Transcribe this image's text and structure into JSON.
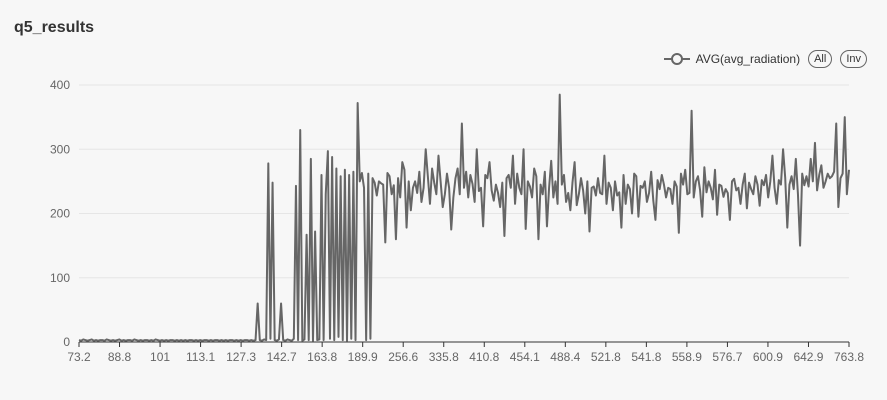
{
  "title": "q5_results",
  "legend": {
    "series_label": "AVG(avg_radiation)",
    "all_label": "All",
    "inv_label": "Inv"
  },
  "colors": {
    "series": "#666666",
    "grid": "#e6e6e6",
    "axis": "#333333"
  },
  "chart_data": {
    "type": "line",
    "title": "q5_results",
    "xlabel": "",
    "ylabel": "",
    "xlim": [
      73.2,
      763.8
    ],
    "ylim": [
      0,
      400
    ],
    "x_tick_labels": [
      "73.2",
      "88.8",
      "101",
      "113.1",
      "127.3",
      "142.7",
      "163.8",
      "189.9",
      "256.6",
      "335.8",
      "410.8",
      "454.1",
      "488.4",
      "521.8",
      "541.8",
      "558.9",
      "576.7",
      "600.9",
      "642.9",
      "763.8"
    ],
    "y_ticks": [
      0,
      100,
      200,
      300,
      400
    ],
    "grid": "horizontal",
    "legend_position": "top-right",
    "series": [
      {
        "name": "AVG(avg_radiation)",
        "sampling": "approximately evenly spaced points across the x-axis categories; values estimated from the image",
        "values": [
          3,
          2,
          4,
          3,
          2,
          3,
          4,
          2,
          3,
          2,
          3,
          3,
          2,
          4,
          3,
          2,
          3,
          2,
          3,
          4,
          2,
          3,
          2,
          3,
          3,
          2,
          4,
          3,
          2,
          3,
          2,
          3,
          3,
          2,
          3,
          2,
          4,
          3,
          2,
          3,
          2,
          3,
          2,
          3,
          3,
          2,
          3,
          2,
          3,
          2,
          3,
          2,
          3,
          3,
          2,
          3,
          2,
          3,
          2,
          3,
          3,
          2,
          3,
          2,
          3,
          3,
          2,
          3,
          2,
          3,
          2,
          3,
          3,
          2,
          3,
          2,
          3,
          2,
          3,
          3,
          2,
          3,
          2,
          3,
          60,
          3,
          2,
          4,
          3,
          278,
          5,
          248,
          3,
          2,
          4,
          60,
          3,
          2,
          4,
          3,
          2,
          5,
          243,
          3,
          330,
          2,
          4,
          167,
          3,
          285,
          2,
          172,
          3,
          4,
          260,
          3,
          230,
          297,
          5,
          288,
          3,
          270,
          8,
          258,
          3,
          268,
          2,
          260,
          5,
          265,
          3,
          372,
          250,
          263,
          240,
          3,
          262,
          5,
          255,
          248,
          228,
          250,
          247,
          245,
          155,
          263,
          258,
          230,
          244,
          160,
          255,
          225,
          280,
          268,
          178,
          250,
          205,
          240,
          250,
          232,
          265,
          218,
          240,
          300,
          258,
          215,
          270,
          248,
          230,
          290,
          250,
          210,
          230,
          262,
          240,
          175,
          225,
          255,
          270,
          230,
          340,
          240,
          265,
          225,
          260,
          246,
          218,
          300,
          235,
          240,
          180,
          260,
          255,
          280,
          236,
          220,
          245,
          232,
          210,
          248,
          165,
          255,
          260,
          240,
          290,
          215,
          262,
          240,
          230,
          300,
          176,
          250,
          242,
          225,
          270,
          258,
          160,
          245,
          230,
          265,
          180,
          240,
          282,
          225,
          250,
          215,
          385,
          245,
          260,
          218,
          232,
          205,
          248,
          280,
          213,
          230,
          255,
          236,
          200,
          250,
          172,
          240,
          242,
          228,
          255,
          232,
          230,
          290,
          215,
          248,
          240,
          205,
          250,
          228,
          233,
          178,
          260,
          215,
          245,
          238,
          200,
          262,
          258,
          195,
          243,
          240,
          250,
          218,
          232,
          265,
          220,
          190,
          252,
          238,
          260,
          245,
          225,
          240,
          238,
          215,
          250,
          242,
          170,
          262,
          245,
          268,
          230,
          232,
          360,
          225,
          250,
          258,
          236,
          195,
          272,
          233,
          250,
          240,
          222,
          268,
          198,
          245,
          243,
          226,
          238,
          232,
          190,
          250,
          254,
          236,
          240,
          215,
          245,
          262,
          208,
          248,
          238,
          230,
          258,
          245,
          212,
          252,
          244,
          260,
          225,
          250,
          290,
          240,
          215,
          252,
          245,
          300,
          256,
          178,
          245,
          258,
          238,
          285,
          230,
          150,
          262,
          244,
          258,
          242,
          285,
          250,
          310,
          236,
          260,
          275,
          240,
          250,
          262,
          255,
          258,
          265,
          340,
          210,
          255,
          262,
          350,
          230,
          268
        ]
      }
    ]
  }
}
